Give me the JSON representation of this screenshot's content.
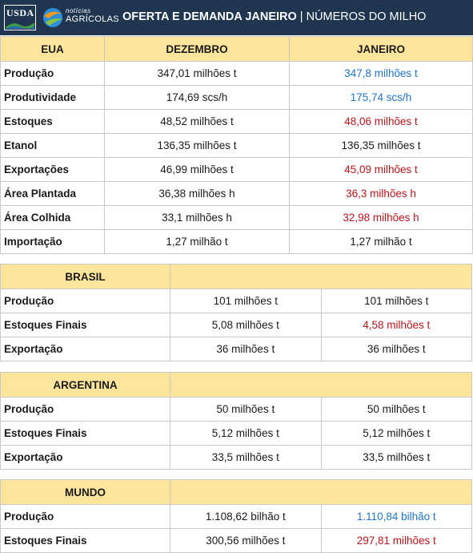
{
  "header": {
    "usda_logo": "USDA",
    "na_logo_small": "notícias",
    "na_logo_big": "AGRÍCOLAS",
    "title_bold": "OFERTA E DEMANDA JANEIRO",
    "title_separator": " | ",
    "title_rest": "NÚMEROS DO MILHO"
  },
  "colors": {
    "header_bg": "#1f3550",
    "section_bg": "#fde59c",
    "increase": "#1f74c7",
    "decrease": "#c0141b"
  },
  "sections": [
    {
      "name": "EUA",
      "col_dez": "DEZEMBRO",
      "col_jan": "JANEIRO",
      "rows": [
        {
          "label": "Produção",
          "dez": "347,01 milhões t",
          "jan": "347,8 milhões t",
          "trend": "blue"
        },
        {
          "label": "Produtividade",
          "dez": "174,69 scs/h",
          "jan": "175,74 scs/h",
          "trend": "blue"
        },
        {
          "label": "Estoques",
          "dez": "48,52 milhões t",
          "jan": "48,06 milhões t",
          "trend": "red"
        },
        {
          "label": "Etanol",
          "dez": "136,35 milhões t",
          "jan": "136,35 milhões t",
          "trend": "black"
        },
        {
          "label": "Exportações",
          "dez": "46,99 milhões t",
          "jan": "45,09 milhões t",
          "trend": "red"
        },
        {
          "label": "Área Plantada",
          "dez": "36,38 milhões h",
          "jan": "36,3 milhões h",
          "trend": "red"
        },
        {
          "label": "Área Colhida",
          "dez": "33,1 milhões h",
          "jan": "32,98 milhões h",
          "trend": "red"
        },
        {
          "label": "Importação",
          "dez": "1,27 milhão t",
          "jan": "1,27 milhão t",
          "trend": "black"
        }
      ]
    },
    {
      "name": "BRASIL",
      "rows": [
        {
          "label": "Produção",
          "dez": "101 milhões t",
          "jan": "101 milhões t",
          "trend": "black"
        },
        {
          "label": "Estoques Finais",
          "dez": "5,08 milhões t",
          "jan": "4,58 milhões t",
          "trend": "red"
        },
        {
          "label": "Exportação",
          "dez": "36 milhões t",
          "jan": "36 milhões t",
          "trend": "black"
        }
      ]
    },
    {
      "name": "ARGENTINA",
      "rows": [
        {
          "label": "Produção",
          "dez": "50 milhões t",
          "jan": "50 milhões t",
          "trend": "black"
        },
        {
          "label": "Estoques Finais",
          "dez": "5,12 milhões t",
          "jan": "5,12 milhões t",
          "trend": "black"
        },
        {
          "label": "Exportação",
          "dez": "33,5 milhões t",
          "jan": "33,5 milhões t",
          "trend": "black"
        }
      ]
    },
    {
      "name": "MUNDO",
      "rows": [
        {
          "label": "Produção",
          "dez": "1.108,62 bilhão t",
          "jan": "1.110,84 bilhão t",
          "trend": "blue"
        },
        {
          "label": "Estoques Finais",
          "dez": "300,56 milhões t",
          "jan": "297,81 milhões t",
          "trend": "red"
        }
      ]
    }
  ]
}
